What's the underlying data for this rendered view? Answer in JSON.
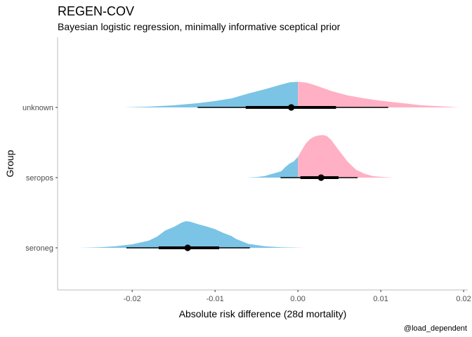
{
  "chart_data": {
    "type": "area",
    "title": "REGEN-COV",
    "subtitle": "Bayesian logistic regression, minimally informative sceptical prior",
    "xlabel": "Absolute risk difference (28d mortality)",
    "ylabel": "Group",
    "caption": "@load_dependent",
    "xlim": [
      -0.029,
      0.0205
    ],
    "x_ticks": [
      -0.02,
      -0.01,
      0.0,
      0.01,
      0.02
    ],
    "x_tick_labels": [
      "-0.02",
      "-0.01",
      "0.00",
      "0.01",
      "0.02"
    ],
    "categories": [
      "unknown",
      "seropos",
      "seroneg"
    ],
    "grid": false,
    "fill_colors": {
      "negative": "#7BC4E6",
      "positive": "#FFB0C4"
    },
    "series": [
      {
        "name": "unknown",
        "density": {
          "x": [
            -0.021,
            -0.018,
            -0.015,
            -0.012,
            -0.01,
            -0.008,
            -0.006,
            -0.004,
            -0.002,
            -0.001,
            0.0,
            0.001,
            0.002,
            0.004,
            0.006,
            0.008,
            0.01,
            0.012,
            0.015,
            0.018,
            0.0195
          ],
          "y": [
            0.0,
            0.03,
            0.08,
            0.16,
            0.24,
            0.34,
            0.52,
            0.68,
            0.86,
            0.94,
            0.96,
            0.93,
            0.84,
            0.62,
            0.45,
            0.34,
            0.25,
            0.18,
            0.08,
            0.03,
            0.0
          ]
        },
        "point": -0.0008,
        "interval_inner": [
          -0.0063,
          0.0046
        ],
        "interval_outer": [
          -0.0121,
          0.0109
        ]
      },
      {
        "name": "seropos",
        "density": {
          "x": [
            -0.0062,
            -0.005,
            -0.004,
            -0.003,
            -0.002,
            -0.0015,
            -0.001,
            -0.0005,
            0.0,
            0.0005,
            0.001,
            0.0015,
            0.002,
            0.0025,
            0.003,
            0.0035,
            0.004,
            0.005,
            0.006,
            0.007,
            0.008,
            0.009,
            0.01,
            0.011,
            0.0115
          ],
          "y": [
            0.0,
            0.02,
            0.06,
            0.15,
            0.24,
            0.4,
            0.53,
            0.61,
            0.78,
            1.05,
            1.3,
            1.45,
            1.54,
            1.58,
            1.6,
            1.56,
            1.42,
            1.0,
            0.6,
            0.3,
            0.15,
            0.06,
            0.03,
            0.01,
            0.0
          ]
        },
        "point": 0.0028,
        "interval_inner": [
          0.0003,
          0.0049
        ],
        "interval_outer": [
          -0.0021,
          0.0072
        ]
      },
      {
        "name": "seroneg",
        "density": {
          "x": [
            -0.0265,
            -0.024,
            -0.022,
            -0.02,
            -0.018,
            -0.017,
            -0.016,
            -0.015,
            -0.014,
            -0.0135,
            -0.013,
            -0.012,
            -0.011,
            -0.01,
            -0.009,
            -0.008,
            -0.0075,
            -0.006,
            -0.004,
            -0.002,
            0.0,
            0.001
          ],
          "y": [
            0.0,
            0.02,
            0.06,
            0.13,
            0.27,
            0.42,
            0.65,
            0.78,
            0.95,
            1.0,
            0.98,
            0.88,
            0.8,
            0.7,
            0.56,
            0.44,
            0.34,
            0.15,
            0.06,
            0.02,
            0.005,
            0.0
          ]
        },
        "point": -0.0133,
        "interval_inner": [
          -0.0168,
          -0.0095
        ],
        "interval_outer": [
          -0.0207,
          -0.0058
        ]
      }
    ]
  }
}
